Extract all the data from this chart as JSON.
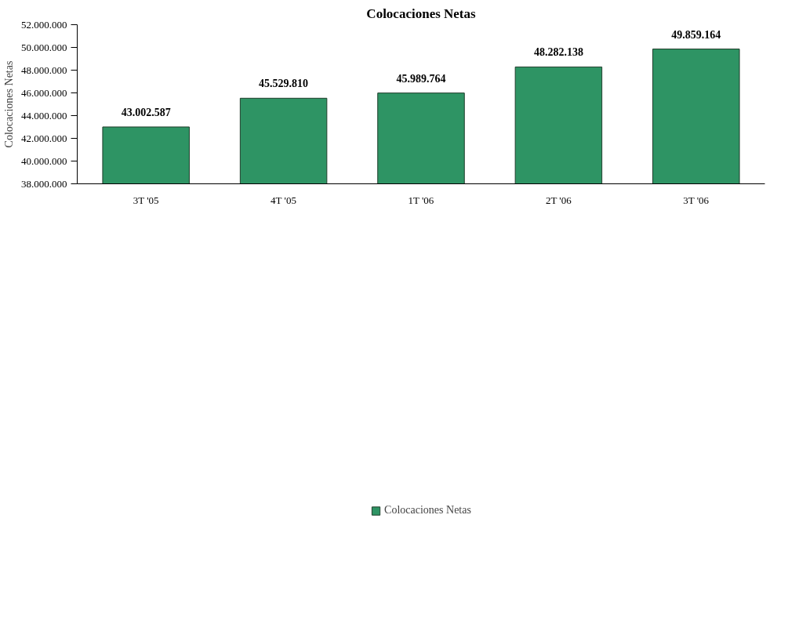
{
  "chart_data": {
    "type": "bar",
    "title": "Colocaciones Netas",
    "ylabel": "Colocaciones Netas",
    "categories": [
      "3T '05",
      "4T '05",
      "1T '06",
      "2T '06",
      "3T '06"
    ],
    "series": [
      {
        "name": "Colocaciones Netas",
        "color": "#2e9464",
        "values": [
          43002587,
          45529810,
          45989764,
          48282138,
          49859164
        ],
        "value_labels": [
          "43.002.587",
          "45.529.810",
          "45.989.764",
          "48.282.138",
          "49.859.164"
        ]
      }
    ],
    "ylim": [
      38000000,
      52000000
    ],
    "yticks": [
      {
        "value": 38000000,
        "label": "38.000.000"
      },
      {
        "value": 40000000,
        "label": "40.000.000"
      },
      {
        "value": 42000000,
        "label": "42.000.000"
      },
      {
        "value": 44000000,
        "label": "44.000.000"
      },
      {
        "value": 46000000,
        "label": "46.000.000"
      },
      {
        "value": 48000000,
        "label": "48.000.000"
      },
      {
        "value": 50000000,
        "label": "50.000.000"
      },
      {
        "value": 52000000,
        "label": "52.000.000"
      }
    ],
    "grid": false,
    "legend": "bottom"
  }
}
